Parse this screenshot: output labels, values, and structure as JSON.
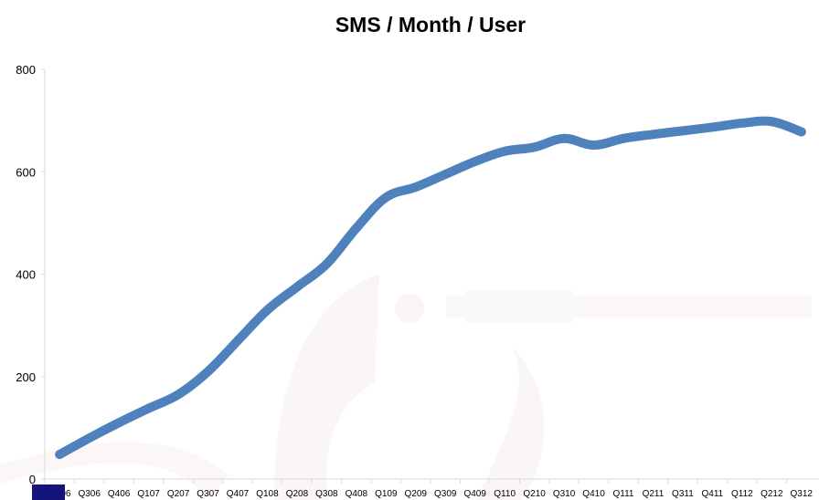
{
  "chart_data": {
    "type": "line",
    "title": "SMS / Month / User",
    "xlabel": "",
    "ylabel": "",
    "ylim": [
      0,
      800
    ],
    "yticks": [
      0,
      200,
      400,
      600,
      800
    ],
    "grid": false,
    "categories": [
      "Q206",
      "Q306",
      "Q406",
      "Q107",
      "Q207",
      "Q307",
      "Q407",
      "Q108",
      "Q208",
      "Q308",
      "Q408",
      "Q109",
      "Q209",
      "Q309",
      "Q409",
      "Q110",
      "Q210",
      "Q310",
      "Q410",
      "Q111",
      "Q211",
      "Q311",
      "Q411",
      "Q112",
      "Q212",
      "Q312"
    ],
    "series": [
      {
        "values": [
          48,
          80,
          110,
          138,
          165,
          210,
          270,
          330,
          375,
          420,
          490,
          550,
          570,
          595,
          620,
          640,
          648,
          665,
          652,
          665,
          673,
          680,
          687,
          695,
          698,
          678
        ],
        "color": "#4f81bd"
      }
    ]
  }
}
